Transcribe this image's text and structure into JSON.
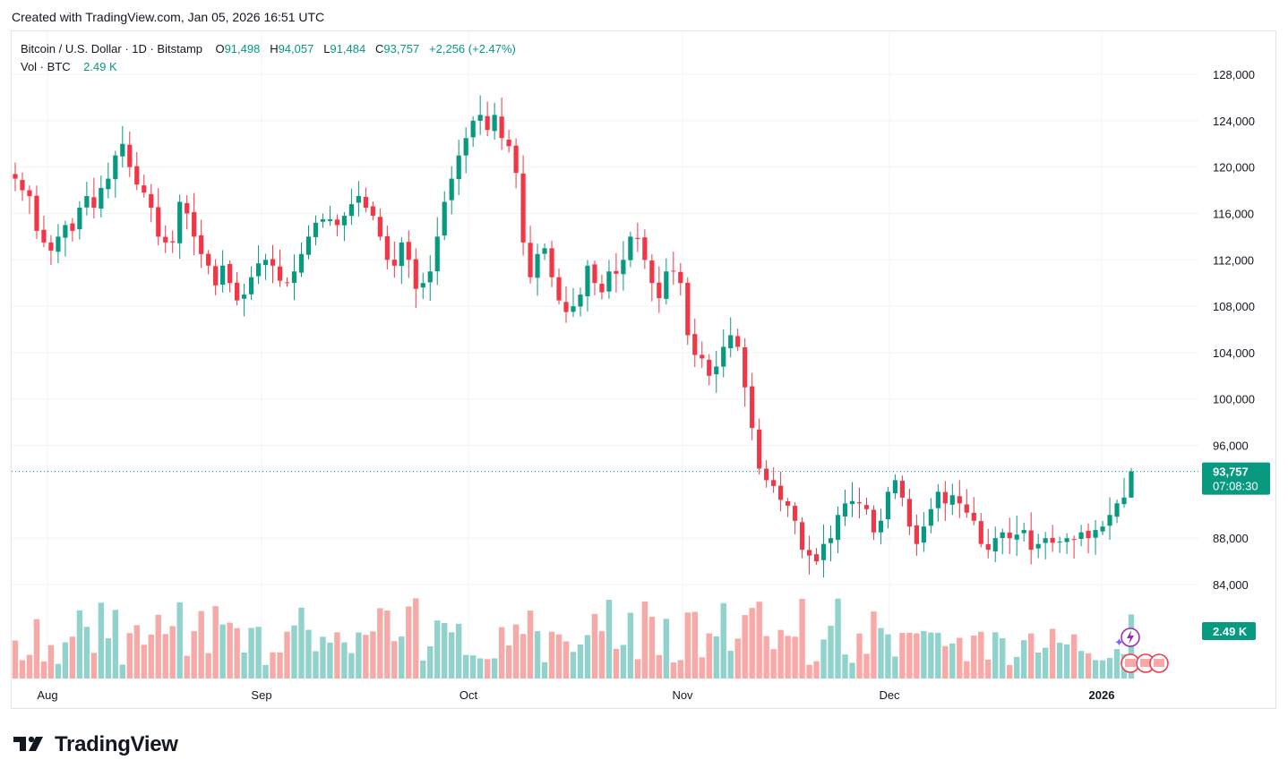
{
  "header": {
    "created_text": "Created with TradingView.com, Jan 05, 2026 16:51 UTC"
  },
  "legend": {
    "symbol": "Bitcoin / U.S. Dollar · 1D · Bitstamp",
    "o_label": "O",
    "o_value": "91,498",
    "h_label": "H",
    "h_value": "94,057",
    "l_label": "L",
    "l_value": "91,484",
    "c_label": "C",
    "c_value": "93,757",
    "change": "+2,256 (+2.47%)",
    "vol_label": "Vol · BTC",
    "vol_value": "2.49 K"
  },
  "footer": {
    "brand": "TradingView"
  },
  "colors": {
    "up": "#089981",
    "down": "#f23645",
    "up_vol": "#92d2cc",
    "down_vol": "#f7a9a7",
    "grid": "#f0f3fa"
  },
  "chart_data": {
    "type": "candlestick",
    "title": "Bitcoin / U.S. Dollar · 1D · Bitstamp",
    "price_axis_ticks": [
      "128,000",
      "124,000",
      "120,000",
      "116,000",
      "112,000",
      "108,000",
      "104,000",
      "100,000",
      "96,000",
      "88,000",
      "84,000"
    ],
    "price_axis_values": [
      128000,
      124000,
      120000,
      116000,
      112000,
      108000,
      104000,
      100000,
      96000,
      88000,
      84000
    ],
    "time_axis_labels": [
      "Aug",
      "Sep",
      "Oct",
      "Nov",
      "Dec",
      "2026"
    ],
    "ylim": [
      79200,
      130000
    ],
    "last_price_label": "93,757",
    "countdown_label": "07:08:30",
    "last_volume_label": "2.49 K",
    "last_close": 93757,
    "close_path": [
      [
        119000,
        118000,
        117500,
        114500,
        113500,
        112800,
        114000,
        115000,
        114500,
        116500,
        117500,
        116500,
        118200,
        119000,
        121000,
        122000,
        120000,
        118500,
        117800,
        116500,
        114000,
        113500,
        113500,
        117000,
        116000,
        114000,
        112500,
        111500,
        109800,
        111500,
        110000,
        108500,
        109000,
        110500,
        111700,
        112000,
        111500,
        110200,
        110000,
        111000,
        112500,
        114000,
        115200,
        115500,
        115500,
        115000,
        115800,
        116800,
        117500,
        116500,
        115800,
        114000,
        112000,
        111500,
        113500,
        112000,
        109500,
        110000,
        111000,
        114000,
        117000,
        119000,
        121000,
        122500,
        124000,
        124500,
        123200,
        124500,
        122500,
        121800,
        119500,
        113500,
        110500,
        112500,
        113000,
        110500,
        108500,
        107500,
        108000,
        109000,
        111500,
        110000,
        109200,
        111000,
        110800,
        112000,
        114000,
        113800,
        112000,
        110000,
        108700,
        111000,
        111000,
        110000,
        105500,
        103800,
        103500,
        102000,
        102800,
        104500,
        105500,
        104500,
        101000,
        97500,
        94000,
        93000,
        92500,
        91300,
        90800,
        89500,
        87000,
        86500,
        86000,
        87500,
        88000,
        90000,
        91000,
        91200,
        91000,
        90500,
        88500,
        89500,
        92000,
        93000,
        91500,
        89000,
        87500,
        89000,
        90500,
        92000,
        91000,
        91700,
        91000,
        90200,
        89500,
        87500,
        87000,
        88000,
        88500,
        88000,
        88300,
        88700,
        87000,
        87500,
        88000,
        87600,
        87700,
        88000,
        87900,
        88500,
        88000,
        88700,
        89000,
        90000,
        91000,
        91500,
        93757
      ]
    ],
    "notes": "Daily candles from roughly late July 2025 to Jan 05 2026; last candle O 91,498 H 94,057 L 91,484 C 93,757."
  }
}
